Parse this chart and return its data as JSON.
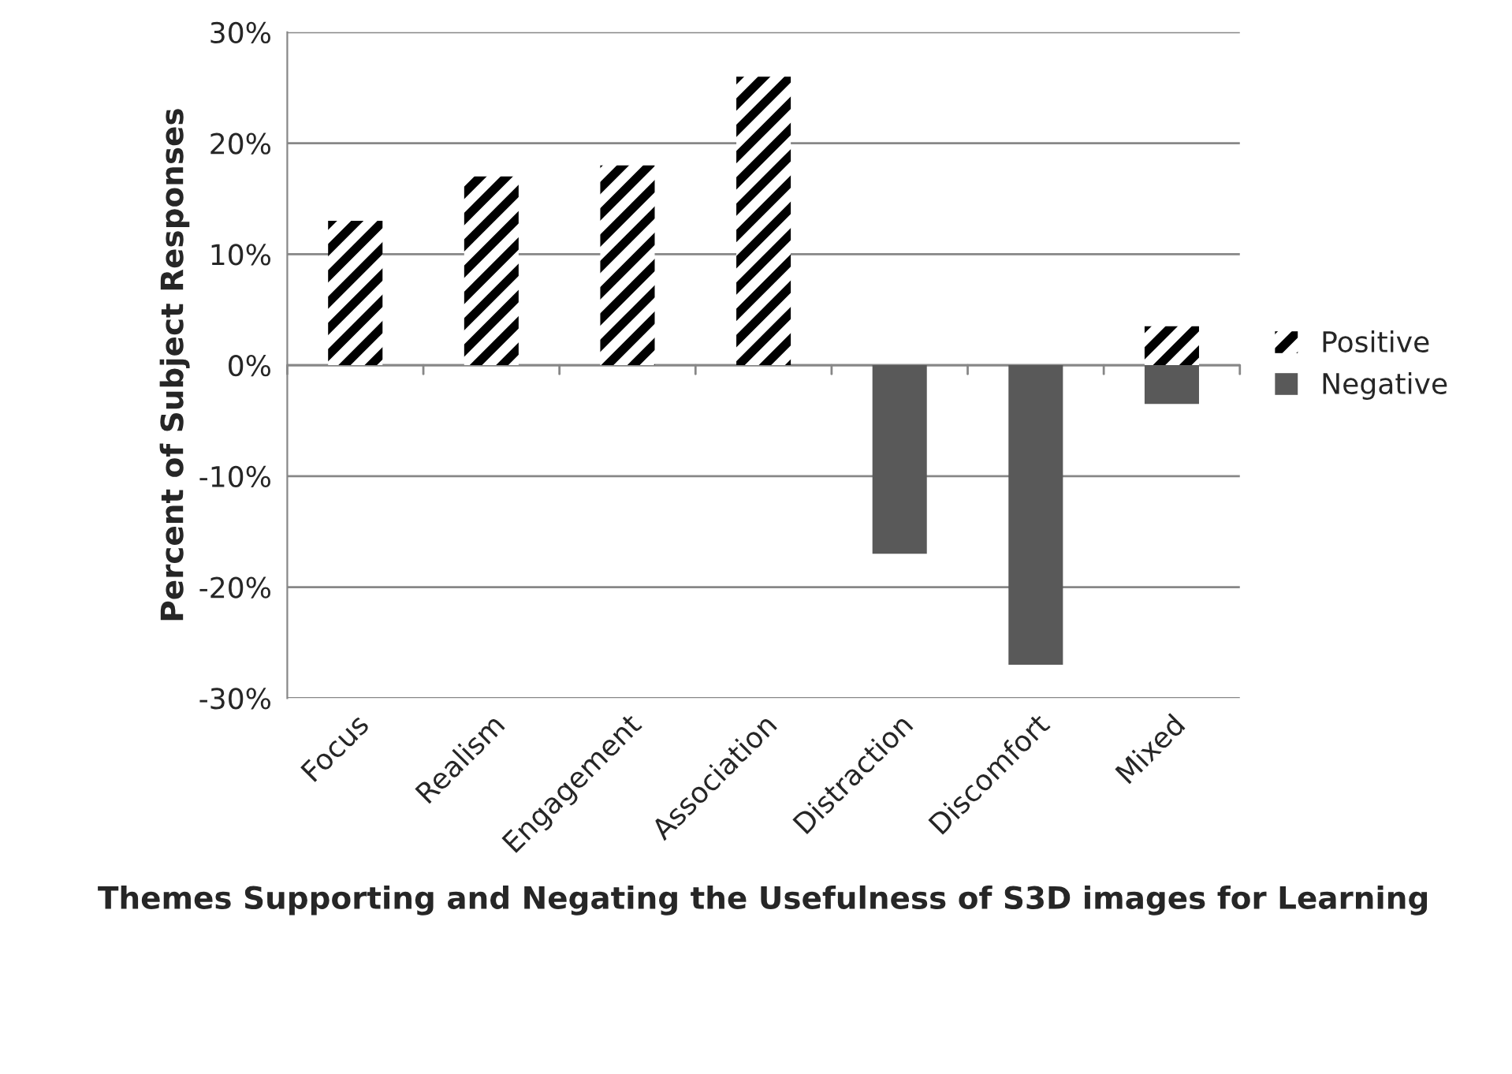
{
  "chart_data": {
    "type": "bar",
    "xlabel": "Themes Supporting and Negating the Usefulness of S3D images for Learning",
    "ylabel": "Percent of Subject Responses",
    "categories": [
      "Focus",
      "Realism",
      "Engagement",
      "Association",
      "Distraction",
      "Discomfort",
      "Mixed"
    ],
    "series": [
      {
        "name": "Positive",
        "color": "#000000",
        "values": [
          13,
          17,
          18,
          26,
          null,
          null,
          3.5
        ]
      },
      {
        "name": "Negative",
        "color": "#595959",
        "values": [
          null,
          null,
          null,
          null,
          -17,
          -27,
          -3.5
        ]
      }
    ],
    "ylim": [
      -30,
      30
    ],
    "yticks": [
      {
        "value": -30,
        "label": "-30%"
      },
      {
        "value": -20,
        "label": "-20%"
      },
      {
        "value": -10,
        "label": "-10%"
      },
      {
        "value": 0,
        "label": "0%"
      },
      {
        "value": 10,
        "label": "10%"
      },
      {
        "value": 20,
        "label": "20%"
      },
      {
        "value": 30,
        "label": "30%"
      }
    ],
    "grid": "y",
    "legend": "right"
  }
}
